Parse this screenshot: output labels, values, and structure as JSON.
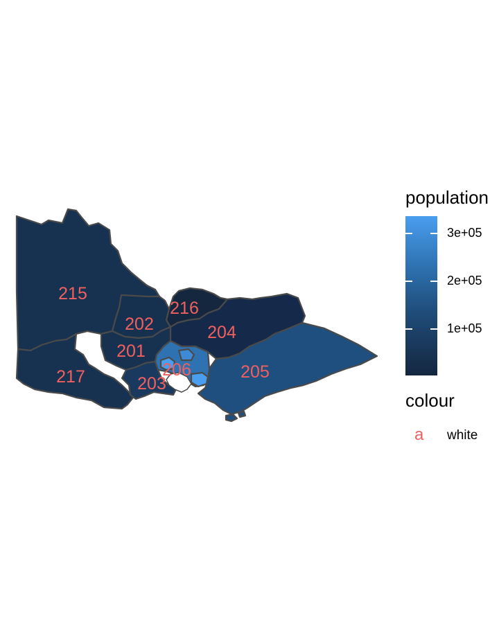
{
  "map": {
    "regions": [
      {
        "id": "215",
        "fill": "#173151"
      },
      {
        "id": "217",
        "fill": "#173151"
      },
      {
        "id": "216",
        "fill": "#14273f"
      },
      {
        "id": "202",
        "fill": "#16304f"
      },
      {
        "id": "201",
        "fill": "#173151"
      },
      {
        "id": "204",
        "fill": "#15294a"
      },
      {
        "id": "205",
        "fill": "#1f4f7f"
      },
      {
        "id": "203",
        "fill": "#193a5e"
      },
      {
        "id": "206",
        "fill": "#2f72b1"
      }
    ],
    "labels": [
      "215",
      "216",
      "202",
      "204",
      "201",
      "206",
      "205",
      "217",
      "203"
    ]
  },
  "legend": {
    "fill_title": "population",
    "ticks": [
      "3e+05",
      "2e+05",
      "1e+05"
    ],
    "colour_title": "colour",
    "colour_glyph": "a",
    "colour_label": "white",
    "label_color": "#f0605f",
    "gradient": [
      "#14263f",
      "#4a9eef"
    ]
  }
}
